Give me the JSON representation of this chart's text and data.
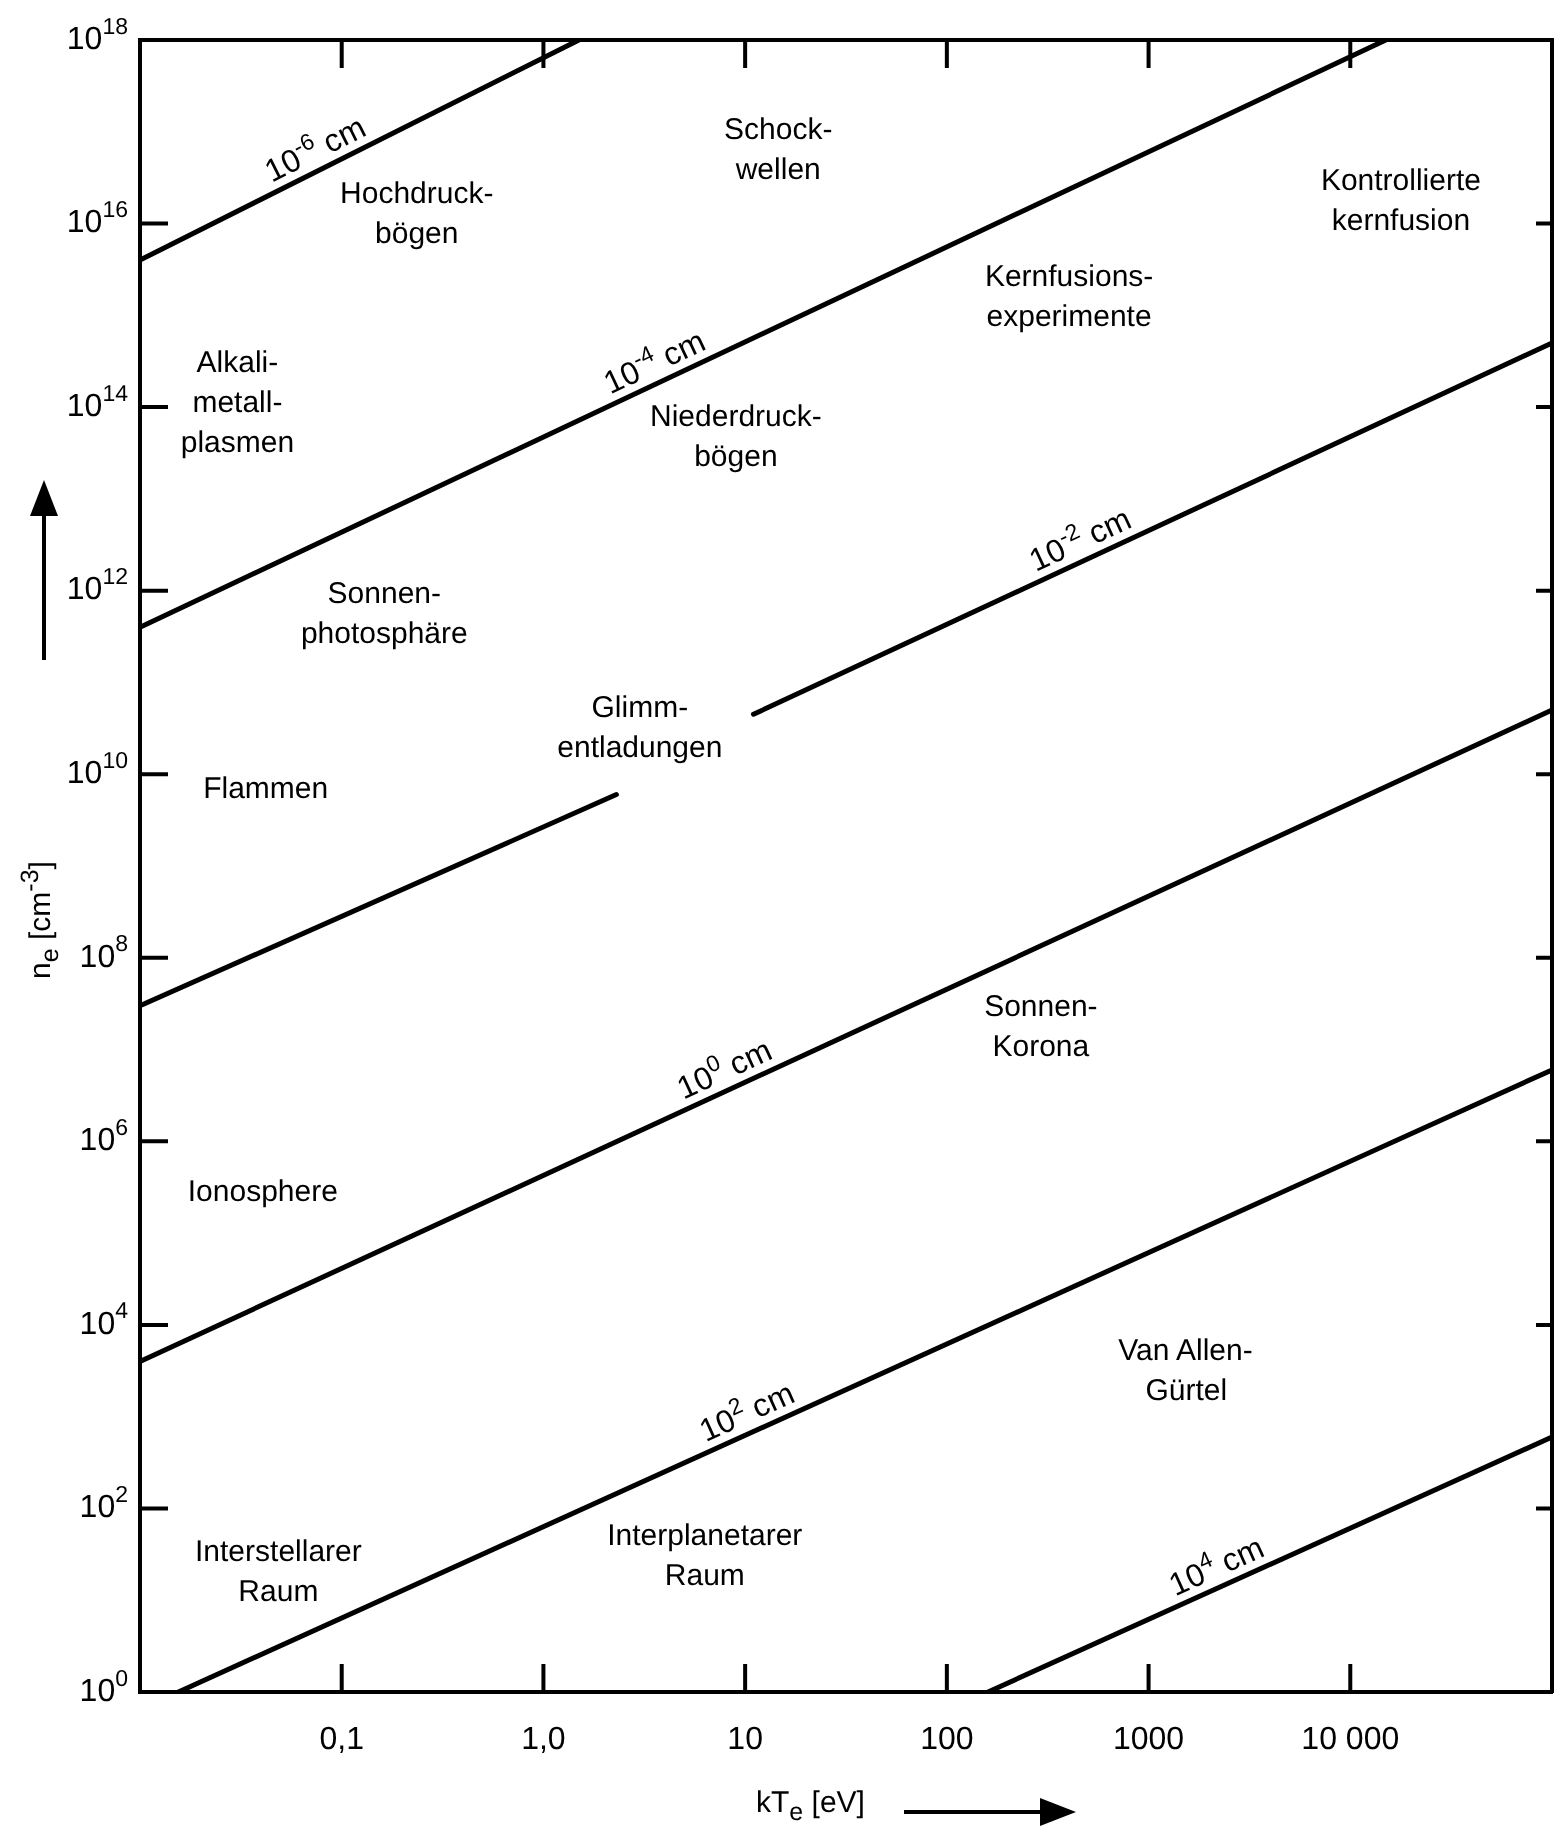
{
  "chart_data": {
    "type": "line",
    "xlabel": "kT$_{e}$ [eV]",
    "ylabel": "n$_{e}$ [cm$^{-3}$]",
    "log": "xy",
    "xlim": [
      0.01,
      100000
    ],
    "xticks": [
      {
        "value": 0.1,
        "label": "0,1"
      },
      {
        "value": 1,
        "label": "1,0"
      },
      10,
      100,
      1000,
      {
        "value": 10000,
        "label": "10 000"
      }
    ],
    "ylim": [
      1,
      1e+18
    ],
    "yticks": [
      {
        "value": 1,
        "label": "10$^{0}$"
      },
      {
        "value": 100,
        "label": "10$^{2}$"
      },
      {
        "value": 10000,
        "label": "10$^{4}$"
      },
      {
        "value": 1000000.0,
        "label": "10$^{6}$"
      },
      {
        "value": 100000000.0,
        "label": "10$^{8}$"
      },
      {
        "value": 10000000000.0,
        "label": "10$^{10}$"
      },
      {
        "value": 1000000000000.0,
        "label": "10$^{12}$"
      },
      {
        "value": 100000000000000.0,
        "label": "10$^{14}$"
      },
      {
        "value": 1e+16,
        "label": "10$^{16}$"
      },
      {
        "value": 1e+18,
        "label": "10$^{18}$"
      }
    ],
    "grid": false,
    "legend": false,
    "marker": "none",
    "line_style": "solid",
    "series": [
      {
        "name": "10$^{-6}$ cm",
        "color": "#000000",
        "x": [
          0.01,
          1.5
        ],
        "values": [
          4000000000000000.0,
          1e+18
        ]
      },
      {
        "name": "10$^{-4}$ cm",
        "color": "#000000",
        "x": [
          0.01,
          15000
        ],
        "values": [
          400000000000.0,
          1e+18
        ]
      },
      {
        "name": "10$^{-2}$ cm",
        "color": "#000000",
        "x": [
          0.01,
          2.3,
          5,
          11,
          100000
        ],
        "values": [
          30000000.0,
          6000000000.0,
          null,
          45000000000.0,
          500000000000000.0
        ]
      },
      {
        "name": "10$^{0}$ cm",
        "color": "#000000",
        "x": [
          0.01,
          100000
        ],
        "values": [
          4000,
          50000000000.0
        ]
      },
      {
        "name": "10$^{2}$ cm",
        "color": "#000000",
        "x": [
          0.0155,
          100000
        ],
        "values": [
          1,
          6000000.0
        ]
      },
      {
        "name": "10$^{4}$ cm",
        "color": "#000000",
        "x": [
          160,
          100000
        ],
        "values": [
          1,
          600
        ]
      }
    ],
    "annotations": [
      "Hochdruck-\nbögen",
      "Schock-\nwellen",
      "Kontrollierte\nkernfusion",
      "Kernfusions-\nexperimente",
      "Alkali-\nmetall-\nplasmen",
      "Niederdruck-\nbögen",
      "Sonnen-\nphotosphäre",
      "Glimm-\nentladungen",
      "Flammen",
      "Ionosphere",
      "Sonnen-\nKorona",
      "Van Allen-\nGürtel",
      "Interstellarer\nRaum",
      "Interplanetarer\nRaum"
    ]
  }
}
